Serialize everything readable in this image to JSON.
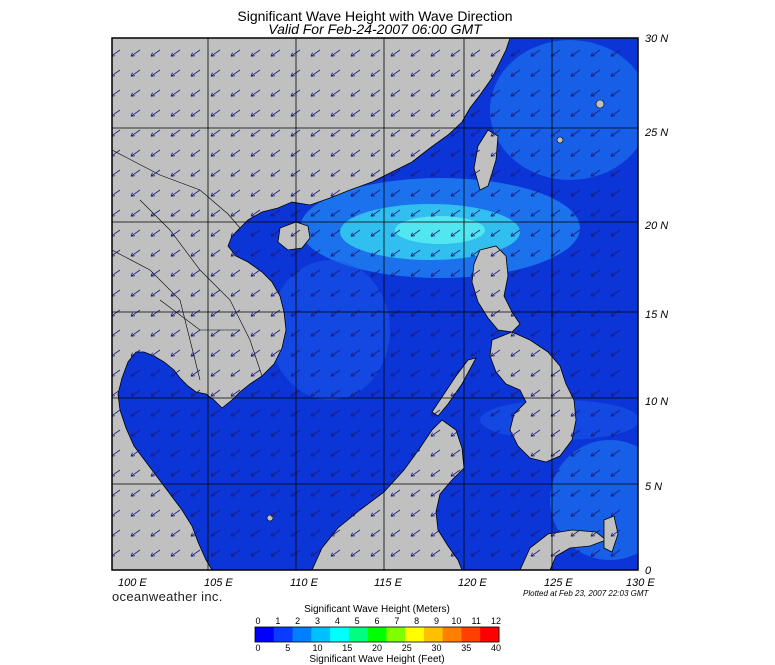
{
  "title": "Significant Wave Height with Wave Direction",
  "subtitle": "Valid For Feb-24-2007 06:00 GMT",
  "lon_labels": [
    "100 E",
    "105 E",
    "110 E",
    "115 E",
    "120 E",
    "125 E",
    "130 E"
  ],
  "lat_labels": [
    "30 N",
    "25 N",
    "20 N",
    "15 N",
    "10 N",
    "5 N",
    "0"
  ],
  "brand": "oceanweather inc.",
  "plotted": "Plotted at Feb 23, 2007 22:03 GMT",
  "colorbar": {
    "title_meters": "Significant Wave Height (Meters)",
    "title_feet": "Significant Wave Height (Feet)",
    "meter_ticks": [
      "0",
      "1",
      "2",
      "3",
      "4",
      "5",
      "6",
      "7",
      "8",
      "9",
      "10",
      "11",
      "12"
    ],
    "feet_ticks": [
      "0",
      "5",
      "10",
      "15",
      "20",
      "25",
      "30",
      "35",
      "40"
    ],
    "colors": [
      "#0000ff",
      "#0a3cff",
      "#0080ff",
      "#00c0ff",
      "#00ffff",
      "#00ff80",
      "#00ff00",
      "#80ff00",
      "#ffff00",
      "#ffc000",
      "#ff8000",
      "#ff4000",
      "#ff0000"
    ]
  },
  "colors": {
    "land": "#c0c0c0",
    "sea_dark": "#0a2cc8",
    "sea_mid": "#1a5cf0",
    "sea_light": "#2aaef0",
    "sea_cyan": "#40e0f0",
    "arrow": "#1a1a7a"
  }
}
